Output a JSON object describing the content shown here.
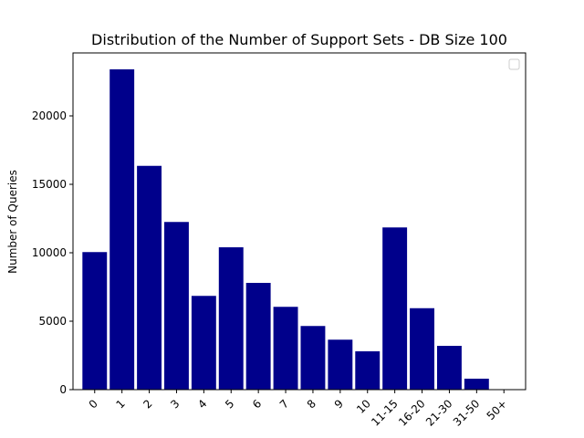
{
  "chart_data": {
    "type": "bar",
    "title": "Distribution of the Number of Support Sets - DB Size 100",
    "xlabel": "",
    "ylabel": "Number of Queries",
    "categories": [
      "0",
      "1",
      "2",
      "3",
      "4",
      "5",
      "6",
      "7",
      "8",
      "9",
      "10",
      "11-15",
      "16-20",
      "21-30",
      "31-50",
      "50+"
    ],
    "values": [
      10050,
      23400,
      16350,
      12250,
      6850,
      10400,
      7800,
      6050,
      4650,
      3650,
      2800,
      11850,
      5950,
      3200,
      800,
      0
    ],
    "yticks": [
      0,
      5000,
      10000,
      15000,
      20000
    ],
    "ylim": [
      0,
      24600
    ],
    "bar_color": "#00008b",
    "legend": {
      "visible": true,
      "placement": "top-right",
      "entries": []
    },
    "grid": false
  }
}
